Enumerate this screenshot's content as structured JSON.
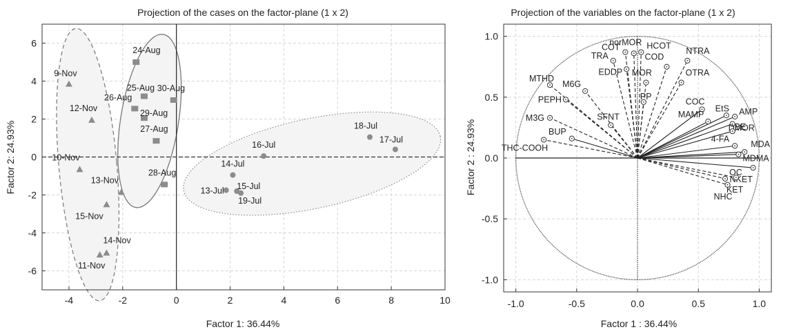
{
  "chart_data": [
    {
      "type": "scatter",
      "title": "Projection of the cases on the factor-plane (1 x 2)",
      "xlabel": "Factor 1: 36.44%",
      "ylabel": "Factor 2: 24.93%",
      "xlim": [
        -5,
        10
      ],
      "ylim": [
        -7,
        7
      ],
      "xticks": [
        "-4",
        "-2",
        "0",
        "2",
        "4",
        "6",
        "8",
        "10"
      ],
      "yticks": [
        "6",
        "4",
        "2",
        "0",
        "-2",
        "-4",
        "-6"
      ],
      "grid": true,
      "series": [
        {
          "marker": "triangle",
          "color": "#8c8c8c",
          "points": [
            {
              "label": "9-Nov",
              "x": -4.0,
              "y": 3.85
            },
            {
              "label": "12-Nov",
              "x": -3.15,
              "y": 1.95
            },
            {
              "label": "10-Nov",
              "x": -3.6,
              "y": -0.65
            },
            {
              "label": "13-Nov",
              "x": -2.05,
              "y": -1.85
            },
            {
              "label": "15-Nov",
              "x": -2.6,
              "y": -2.5
            },
            {
              "label": "14-Nov",
              "x": -2.6,
              "y": -5.05
            },
            {
              "label": "11-Nov",
              "x": -2.85,
              "y": -5.15
            }
          ]
        },
        {
          "marker": "square",
          "color": "#8c8c8c",
          "points": [
            {
              "label": "24-Aug",
              "x": -1.5,
              "y": 5.0
            },
            {
              "label": "25-Aug",
              "x": -1.2,
              "y": 3.2
            },
            {
              "label": "30-Aug",
              "x": -0.1,
              "y": 3.0
            },
            {
              "label": "26-Aug",
              "x": -1.55,
              "y": 2.55
            },
            {
              "label": "29-Aug",
              "x": -1.2,
              "y": 2.05
            },
            {
              "label": "27-Aug",
              "x": -0.75,
              "y": 0.85
            },
            {
              "label": "28-Aug",
              "x": -0.45,
              "y": -1.45
            }
          ]
        },
        {
          "marker": "circle",
          "color": "#8c8c8c",
          "points": [
            {
              "label": "18-Jul",
              "x": 7.2,
              "y": 1.05
            },
            {
              "label": "17-Jul",
              "x": 8.15,
              "y": 0.4
            },
            {
              "label": "16-Jul",
              "x": 3.25,
              "y": 0.05
            },
            {
              "label": "14-Jul",
              "x": 2.1,
              "y": -0.95
            },
            {
              "label": "13-Jul",
              "x": 1.85,
              "y": -1.75
            },
            {
              "label": "15-Jul",
              "x": 2.25,
              "y": -1.8
            },
            {
              "label": "19-Jul",
              "x": 2.4,
              "y": -1.9
            }
          ]
        }
      ]
    },
    {
      "type": "scatter",
      "title": "Projection of the variables on the factor-plane (1 x  2)",
      "xlabel": "Factor 1 : 36.44%",
      "ylabel": "Factor 2 : 24.93%",
      "xlim": [
        -1.1,
        1.1
      ],
      "ylim": [
        -1.1,
        1.1
      ],
      "xticks": [
        "-1.0",
        "-0.5",
        "0.0",
        "0.5",
        "1.0"
      ],
      "yticks": [
        "1.0",
        "0.5",
        "0.0",
        "-0.5",
        "-1.0"
      ],
      "grid": true,
      "variables": [
        {
          "label": "norMOR",
          "x": -0.03,
          "y": 0.86
        },
        {
          "label": "COT",
          "x": -0.1,
          "y": 0.87
        },
        {
          "label": "HCOT",
          "x": 0.03,
          "y": 0.87
        },
        {
          "label": "TRA",
          "x": -0.2,
          "y": 0.8
        },
        {
          "label": "EDDP",
          "x": -0.09,
          "y": 0.73
        },
        {
          "label": "COD",
          "x": 0.24,
          "y": 0.75
        },
        {
          "label": "NTRA",
          "x": 0.41,
          "y": 0.8
        },
        {
          "label": "MOR",
          "x": 0.07,
          "y": 0.62
        },
        {
          "label": "MTHD",
          "x": -0.72,
          "y": 0.6
        },
        {
          "label": "M6G",
          "x": -0.43,
          "y": 0.55
        },
        {
          "label": "OTRA",
          "x": 0.36,
          "y": 0.62
        },
        {
          "label": "PP",
          "x": 0.05,
          "y": 0.46
        },
        {
          "label": "PEPH",
          "x": -0.59,
          "y": 0.48
        },
        {
          "label": "COC",
          "x": 0.53,
          "y": 0.4
        },
        {
          "label": "EtS",
          "x": 0.73,
          "y": 0.35
        },
        {
          "label": "AMP",
          "x": 0.8,
          "y": 0.34
        },
        {
          "label": "MAMP",
          "x": 0.58,
          "y": 0.3
        },
        {
          "label": "DMOR",
          "x": 0.78,
          "y": 0.28
        },
        {
          "label": "SFNT",
          "x": -0.22,
          "y": 0.27
        },
        {
          "label": "M3G",
          "x": -0.72,
          "y": 0.33
        },
        {
          "label": "BE",
          "x": 0.78,
          "y": 0.22
        },
        {
          "label": "4-FA",
          "x": 0.8,
          "y": 0.1
        },
        {
          "label": "MDA",
          "x": 0.88,
          "y": 0.05
        },
        {
          "label": "MDMA",
          "x": 0.83,
          "y": 0.03
        },
        {
          "label": "BUP",
          "x": -0.54,
          "y": 0.16
        },
        {
          "label": "THC-COOH",
          "x": -0.77,
          "y": 0.15
        },
        {
          "label": "NKET",
          "x": 0.95,
          "y": -0.08
        },
        {
          "label": "KET",
          "x": 0.81,
          "y": -0.16
        },
        {
          "label": "OC",
          "x": 0.72,
          "y": -0.17
        },
        {
          "label": "NHC",
          "x": 0.74,
          "y": -0.22
        }
      ]
    }
  ]
}
